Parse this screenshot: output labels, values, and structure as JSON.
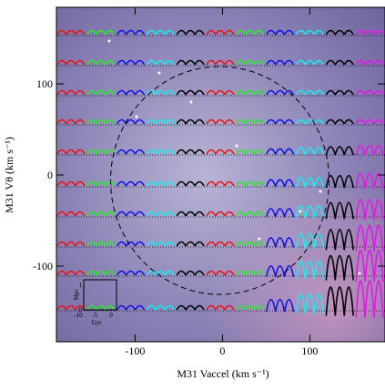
{
  "chart_data": {
    "type": "orbit-grid",
    "x_label": "M31 Vaccel (km s⁻¹)",
    "y_label": "M31 Vθ (km s⁻¹)",
    "xlim": [
      -190,
      186
    ],
    "ylim": [
      -183,
      184
    ],
    "xticks": [
      -100,
      0,
      100
    ],
    "yticks": [
      -100,
      0,
      100
    ],
    "rows": [
      153,
      120,
      87,
      55,
      22,
      -13,
      -46,
      -79,
      -111,
      -149
    ],
    "segment_colors": [
      "#ee1111",
      "#22ee22",
      "#1111ee",
      "#11eeee",
      "#000000",
      "#ee1111",
      "#22ee22",
      "#1111ee",
      "#11eeee",
      "#000000",
      "#ee11ee"
    ],
    "circle": {
      "center": [
        -3,
        -6
      ],
      "radius": 125
    },
    "inset": {
      "y_label": "Mpc",
      "x_label": "Gyr",
      "xticks": [
        "-10",
        "-5",
        "0"
      ],
      "yticks": [
        "1",
        "0"
      ]
    }
  }
}
